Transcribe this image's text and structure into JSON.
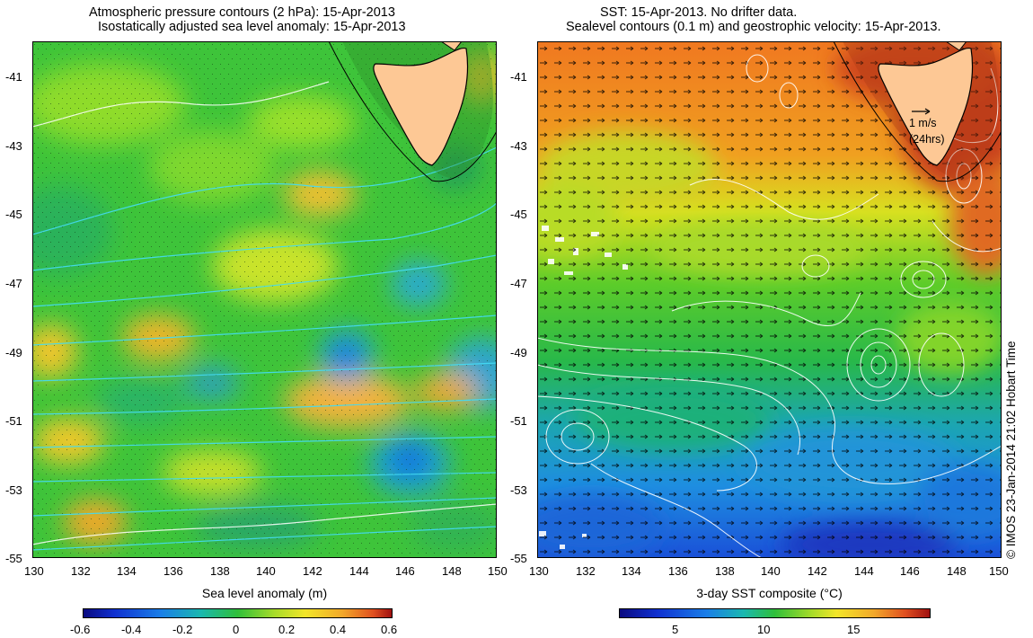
{
  "left": {
    "title1": "Atmospheric pressure contours (2 hPa): 15-Apr-2013",
    "title2": "Isostatically adjusted sea level anomaly: 15-Apr-2013",
    "xlabel": "Sea level anomaly (m)",
    "cbar_ticks": [
      "-0.6",
      "-0.4",
      "-0.2",
      "0",
      "0.2",
      "0.4",
      "0.6"
    ],
    "cbar_range": [
      -0.6,
      0.6
    ]
  },
  "right": {
    "title1": "SST: 15-Apr-2013. No drifter data.",
    "title2": "Sealevel contours (0.1 m) and geostrophic velocity: 15-Apr-2013.",
    "xlabel": "3-day SST composite (°C)",
    "cbar_ticks": [
      "5",
      "10",
      "15"
    ],
    "cbar_range": [
      2,
      20
    ],
    "velocity_label": "1 m/s",
    "velocity_sublabel": "(24hrs)"
  },
  "x_ticks": [
    "130",
    "132",
    "134",
    "136",
    "138",
    "140",
    "142",
    "144",
    "146",
    "148",
    "150"
  ],
  "y_ticks": [
    "-41",
    "-43",
    "-45",
    "-47",
    "-49",
    "-51",
    "-53",
    "-55"
  ],
  "credit": "© IMOS 23-Jan-2014 21:02 Hobart Time",
  "colors": {
    "land": "#fdc895",
    "ocean_mid": "#2fbf3a",
    "sla_high": "#f08a20",
    "sla_low": "#1f6fe6",
    "sst_warm": "#c83a10",
    "sst_cold": "#1850d8",
    "contour_left": "#40e0ff",
    "contour_right": "#ffffff"
  },
  "map_extent": {
    "lon": [
      130,
      150
    ],
    "lat": [
      -55,
      -40
    ]
  }
}
